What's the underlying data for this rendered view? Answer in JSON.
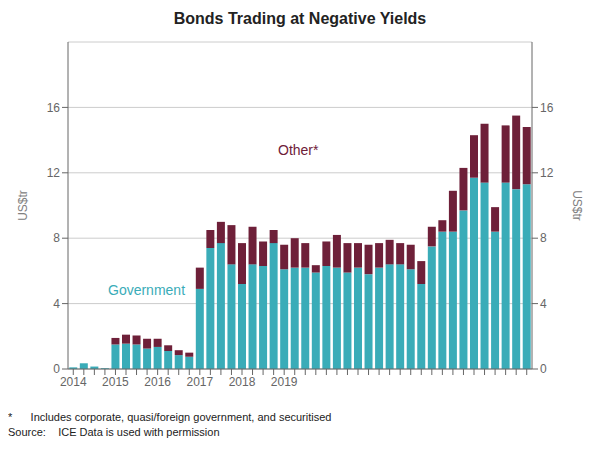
{
  "chart_data": {
    "type": "bar",
    "title": "Bonds Trading at Negative Yields",
    "stacked": true,
    "grid": true,
    "ylabel": "US$tr",
    "y2label": "US$tr",
    "ylim": [
      0,
      20
    ],
    "yticks": [
      0,
      4,
      8,
      12,
      16
    ],
    "y2lim": [
      0,
      20
    ],
    "y2ticks": [
      0,
      4,
      8,
      12,
      16
    ],
    "categories": [
      "2014",
      null,
      null,
      null,
      "2015",
      null,
      null,
      null,
      "2016",
      null,
      null,
      null,
      "2017",
      null,
      null,
      null,
      "2018",
      null,
      null,
      null,
      "2019",
      null,
      null,
      null,
      null,
      null,
      null,
      null,
      null,
      null,
      null,
      null,
      null,
      null,
      null,
      null,
      null,
      null,
      null,
      null,
      null,
      null,
      null,
      null
    ],
    "series": [
      {
        "name": "Government",
        "color": "#3aacb8",
        "values": [
          0.1,
          0.35,
          0.15,
          0.05,
          1.5,
          1.55,
          1.5,
          1.25,
          1.35,
          1.1,
          0.85,
          0.75,
          4.9,
          7.4,
          7.7,
          6.4,
          5.2,
          6.4,
          6.3,
          7.7,
          6.1,
          6.2,
          6.2,
          5.9,
          6.3,
          6.2,
          5.9,
          6.2,
          5.8,
          6.2,
          6.4,
          6.4,
          6.1,
          5.2,
          7.5,
          8.4,
          8.4,
          9.7,
          11.7,
          11.4,
          8.4,
          11.4,
          11.0,
          11.3
        ]
      },
      {
        "name": "Other*",
        "color": "#6e2039",
        "values": [
          0.0,
          0.0,
          0.0,
          0.0,
          0.4,
          0.55,
          0.55,
          0.6,
          0.5,
          0.35,
          0.3,
          0.25,
          1.3,
          1.1,
          1.3,
          2.4,
          2.5,
          2.3,
          1.5,
          0.8,
          1.5,
          1.8,
          1.5,
          0.45,
          1.5,
          2.0,
          1.8,
          1.5,
          1.8,
          1.5,
          1.5,
          1.3,
          1.5,
          1.4,
          1.2,
          0.7,
          2.5,
          2.6,
          2.6,
          3.6,
          1.5,
          3.5,
          4.5,
          3.5
        ]
      }
    ],
    "footnotes": [
      "*      Includes corporate, quasi/foreign government, and securitised",
      "Source:    ICE Data is used with permission"
    ]
  }
}
